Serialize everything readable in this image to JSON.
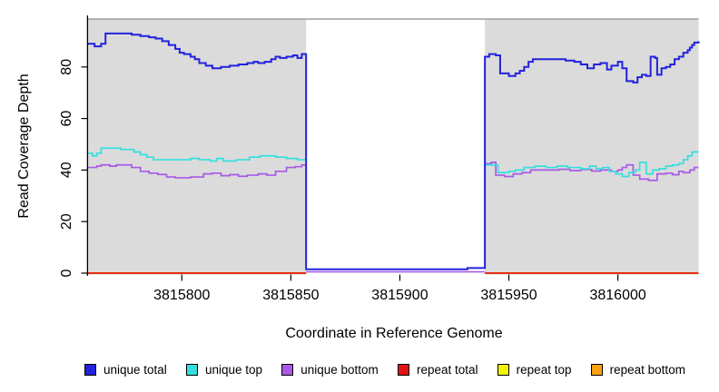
{
  "chart_data": {
    "type": "line",
    "subtype": "step",
    "title": "",
    "xlabel": "Coordinate in Reference Genome",
    "ylabel": "Read Coverage Depth",
    "xlim": [
      3815757,
      3816037
    ],
    "ylim": [
      0,
      99
    ],
    "xticks": [
      3815800,
      3815850,
      3815900,
      3815950,
      3816000
    ],
    "yticks": [
      0,
      20,
      40,
      60,
      80
    ],
    "grid": false,
    "legend_position": "bottom",
    "panel_bg": "#dbdbdb",
    "panel_top_border_color": "#9e9e9e",
    "coverage_regions": [
      [
        3815757,
        3815857
      ],
      [
        3815939,
        3816037
      ]
    ],
    "gap_region": [
      3815857,
      3815939
    ],
    "series": [
      {
        "name": "unique total",
        "color": "#2222dd",
        "width": 2,
        "segments": [
          [
            [
              3815757,
              89
            ],
            [
              3815760,
              88
            ],
            [
              3815763,
              89
            ],
            [
              3815765,
              93
            ],
            [
              3815777,
              92.5
            ],
            [
              3815781,
              92
            ],
            [
              3815785,
              91.5
            ],
            [
              3815788,
              91
            ],
            [
              3815791,
              90
            ],
            [
              3815794,
              88.5
            ],
            [
              3815797,
              87
            ],
            [
              3815799,
              85.5
            ],
            [
              3815801,
              85
            ],
            [
              3815804,
              84
            ],
            [
              3815806,
              83
            ],
            [
              3815808,
              81.5
            ],
            [
              3815811,
              80.5
            ],
            [
              3815814,
              79.5
            ],
            [
              3815818,
              80
            ],
            [
              3815822,
              80.5
            ],
            [
              3815826,
              81
            ],
            [
              3815830,
              81.5
            ],
            [
              3815833,
              82
            ],
            [
              3815835,
              81.5
            ],
            [
              3815838,
              82
            ],
            [
              3815841,
              83
            ],
            [
              3815843,
              84
            ],
            [
              3815845,
              83.5
            ],
            [
              3815848,
              84
            ],
            [
              3815851,
              84.5
            ],
            [
              3815853,
              83.5
            ],
            [
              3815855,
              85
            ],
            [
              3815857,
              1.5
            ],
            [
              3815931,
              2
            ],
            [
              3815939,
              84
            ],
            [
              3815941,
              85
            ],
            [
              3815944,
              84.5
            ],
            [
              3815946,
              77.5
            ],
            [
              3815950,
              76.5
            ],
            [
              3815953,
              77.5
            ],
            [
              3815955,
              78.5
            ],
            [
              3815957,
              80
            ],
            [
              3815959,
              82
            ],
            [
              3815961,
              83
            ],
            [
              3815976,
              82.5
            ],
            [
              3815980,
              82
            ],
            [
              3815983,
              81
            ],
            [
              3815986,
              79.5
            ],
            [
              3815989,
              81
            ],
            [
              3815992,
              81.5
            ],
            [
              3815995,
              79
            ],
            [
              3815997,
              80.5
            ],
            [
              3816000,
              82
            ],
            [
              3816002,
              79.5
            ],
            [
              3816004,
              74.5
            ],
            [
              3816007,
              74
            ],
            [
              3816009,
              76
            ],
            [
              3816011,
              77
            ],
            [
              3816013,
              76.5
            ],
            [
              3816015,
              84
            ],
            [
              3816017,
              83.5
            ],
            [
              3816018,
              77
            ],
            [
              3816020,
              79.5
            ],
            [
              3816022,
              80
            ],
            [
              3816024,
              81
            ],
            [
              3816026,
              83
            ],
            [
              3816028,
              84
            ],
            [
              3816030,
              85.5
            ],
            [
              3816032,
              86.5
            ],
            [
              3816033,
              87.5
            ],
            [
              3816034,
              88.5
            ],
            [
              3816035,
              89.5
            ],
            [
              3816037,
              90
            ]
          ]
        ]
      },
      {
        "name": "unique top",
        "color": "#35dede",
        "width": 1.7,
        "segments": [
          [
            [
              3815757,
              46.5
            ],
            [
              3815759,
              45.5
            ],
            [
              3815761,
              46.5
            ],
            [
              3815763,
              48.5
            ],
            [
              3815772,
              48
            ],
            [
              3815778,
              47
            ],
            [
              3815781,
              46
            ],
            [
              3815784,
              45
            ],
            [
              3815787,
              44
            ],
            [
              3815804,
              44.5
            ],
            [
              3815808,
              44
            ],
            [
              3815813,
              43.5
            ],
            [
              3815816,
              44.5
            ],
            [
              3815819,
              43.5
            ],
            [
              3815825,
              44
            ],
            [
              3815831,
              45
            ],
            [
              3815836,
              45.5
            ],
            [
              3815843,
              45
            ],
            [
              3815848,
              44.5
            ],
            [
              3815853,
              44
            ],
            [
              3815857,
              44
            ]
          ],
          [
            [
              3815939,
              42
            ],
            [
              3815945,
              39
            ],
            [
              3815950,
              39.5
            ],
            [
              3815953,
              40
            ],
            [
              3815957,
              41
            ],
            [
              3815962,
              41.5
            ],
            [
              3815967,
              41
            ],
            [
              3815972,
              41.5
            ],
            [
              3815977,
              41
            ],
            [
              3815983,
              40.5
            ],
            [
              3815987,
              41.5
            ],
            [
              3815990,
              40.5
            ],
            [
              3815993,
              41
            ],
            [
              3815996,
              39.5
            ],
            [
              3815999,
              38.5
            ],
            [
              3816002,
              37.5
            ],
            [
              3816005,
              39
            ],
            [
              3816008,
              40
            ],
            [
              3816010,
              43
            ],
            [
              3816013,
              38.5
            ],
            [
              3816016,
              40
            ],
            [
              3816019,
              40.5
            ],
            [
              3816022,
              41.5
            ],
            [
              3816025,
              42
            ],
            [
              3816028,
              42.5
            ],
            [
              3816030,
              44
            ],
            [
              3816032,
              45.5
            ],
            [
              3816034,
              47
            ],
            [
              3816037,
              47
            ]
          ]
        ]
      },
      {
        "name": "unique bottom",
        "color": "#a85ae6",
        "width": 1.7,
        "segments": [
          [
            [
              3815757,
              41
            ],
            [
              3815761,
              41.5
            ],
            [
              3815763,
              42
            ],
            [
              3815767,
              41.5
            ],
            [
              3815770,
              42
            ],
            [
              3815777,
              41
            ],
            [
              3815781,
              39.5
            ],
            [
              3815785,
              38.8
            ],
            [
              3815789,
              38.3
            ],
            [
              3815793,
              37.3
            ],
            [
              3815797,
              37
            ],
            [
              3815804,
              37.3
            ],
            [
              3815810,
              38.5
            ],
            [
              3815814,
              38.8
            ],
            [
              3815818,
              37.8
            ],
            [
              3815822,
              38.2
            ],
            [
              3815826,
              37.6
            ],
            [
              3815830,
              38
            ],
            [
              3815835,
              38.5
            ],
            [
              3815839,
              38
            ],
            [
              3815843,
              39.5
            ],
            [
              3815848,
              41
            ],
            [
              3815852,
              41.3
            ],
            [
              3815855,
              42
            ],
            [
              3815857,
              42
            ]
          ],
          [
            [
              3815857,
              0.5
            ],
            [
              3815939,
              0.5
            ]
          ],
          [
            [
              3815939,
              42.5
            ],
            [
              3815942,
              43
            ],
            [
              3815944,
              38
            ],
            [
              3815948,
              37.5
            ],
            [
              3815952,
              38.5
            ],
            [
              3815956,
              39
            ],
            [
              3815960,
              40
            ],
            [
              3815973,
              40.3
            ],
            [
              3815978,
              39.8
            ],
            [
              3815983,
              40.2
            ],
            [
              3815988,
              39.6
            ],
            [
              3815992,
              40
            ],
            [
              3815997,
              39.5
            ],
            [
              3816000,
              40
            ],
            [
              3816002,
              41
            ],
            [
              3816004,
              42
            ],
            [
              3816007,
              38
            ],
            [
              3816010,
              36.5
            ],
            [
              3816014,
              36
            ],
            [
              3816018,
              38.5
            ],
            [
              3816022,
              38.8
            ],
            [
              3816025,
              38.2
            ],
            [
              3816028,
              39.5
            ],
            [
              3816030,
              39
            ],
            [
              3816033,
              40
            ],
            [
              3816035,
              41
            ],
            [
              3816037,
              41
            ]
          ]
        ]
      },
      {
        "name": "repeat total",
        "color": "#e01515",
        "width": 1.7,
        "segments": [
          [
            [
              3815757,
              0
            ],
            [
              3815857,
              0
            ]
          ],
          [
            [
              3815939,
              0
            ],
            [
              3816037,
              0
            ]
          ]
        ]
      },
      {
        "name": "repeat top",
        "color": "#f4f400",
        "width": 1.7,
        "segments": [
          [
            [
              3815757,
              0
            ],
            [
              3815857,
              0
            ]
          ],
          [
            [
              3815939,
              0
            ],
            [
              3816037,
              0
            ]
          ]
        ]
      },
      {
        "name": "repeat bottom",
        "color": "#ffa013",
        "width": 1.9,
        "segments": [
          [
            [
              3815757,
              0
            ],
            [
              3815857,
              0
            ]
          ],
          [
            [
              3815939,
              0
            ],
            [
              3816037,
              0
            ]
          ]
        ]
      }
    ]
  }
}
